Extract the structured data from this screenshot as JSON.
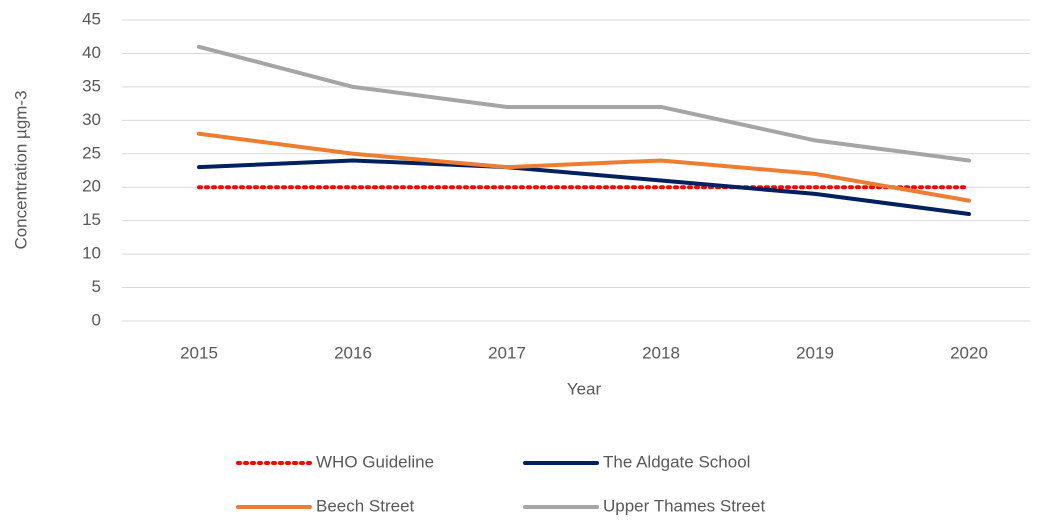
{
  "chart_data": {
    "type": "line",
    "x_label": "Year",
    "y_label": "Concentration µgm-3",
    "categories": [
      "2015",
      "2016",
      "2017",
      "2018",
      "2019",
      "2020"
    ],
    "series": [
      {
        "name": "WHO Guideline",
        "color": "#ff0000",
        "style": "dotted",
        "values": [
          20,
          20,
          20,
          20,
          20,
          20
        ]
      },
      {
        "name": "The Aldgate School",
        "color": "#002060",
        "style": "solid",
        "values": [
          23,
          24,
          23,
          21,
          19,
          16
        ]
      },
      {
        "name": "Beech Street",
        "color": "#ed7d31",
        "style": "solid",
        "values": [
          28,
          25,
          23,
          24,
          22,
          18
        ]
      },
      {
        "name": "Upper Thames Street",
        "color": "#a5a5a5",
        "style": "solid",
        "values": [
          41,
          35,
          32,
          32,
          27,
          24
        ]
      }
    ],
    "ylim": [
      0,
      45
    ],
    "yticks": [
      0,
      5,
      10,
      15,
      20,
      25,
      30,
      35,
      40,
      45
    ],
    "grid": true,
    "legend": "bottom"
  }
}
